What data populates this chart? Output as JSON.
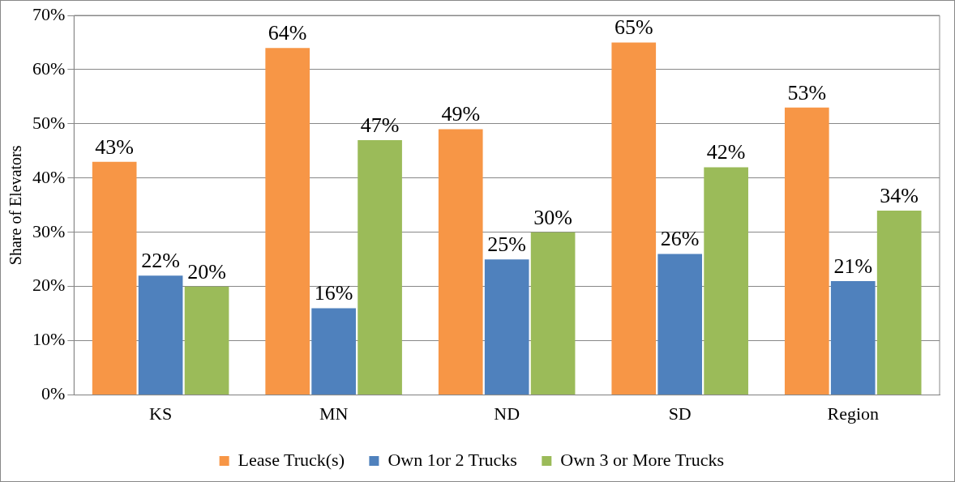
{
  "chart_data": {
    "type": "bar",
    "ylabel": "Share of Elevators",
    "categories": [
      "KS",
      "MN",
      "ND",
      "SD",
      "Region"
    ],
    "series": [
      {
        "name": "Lease Truck(s)",
        "color": "#f79646",
        "values": [
          43,
          64,
          49,
          65,
          53
        ],
        "value_labels": [
          "43%",
          "64%",
          "49%",
          "65%",
          "53%"
        ]
      },
      {
        "name": "Own 1or 2 Trucks",
        "color": "#4f81bd",
        "values": [
          22,
          16,
          25,
          26,
          21
        ],
        "value_labels": [
          "22%",
          "16%",
          "25%",
          "26%",
          "21%"
        ]
      },
      {
        "name": "Own 3 or More Trucks",
        "color": "#9bbb59",
        "values": [
          20,
          47,
          30,
          42,
          34
        ],
        "value_labels": [
          "20%",
          "47%",
          "30%",
          "42%",
          "34%"
        ]
      }
    ],
    "ylim": [
      0,
      70
    ],
    "yticks": [
      {
        "value": 0,
        "label": "0%"
      },
      {
        "value": 10,
        "label": "10%"
      },
      {
        "value": 20,
        "label": "20%"
      },
      {
        "value": 30,
        "label": "30%"
      },
      {
        "value": 40,
        "label": "40%"
      },
      {
        "value": 50,
        "label": "50%"
      },
      {
        "value": 60,
        "label": "60%"
      },
      {
        "value": 70,
        "label": "70%"
      }
    ],
    "grid": "y",
    "legend": "bottom"
  }
}
